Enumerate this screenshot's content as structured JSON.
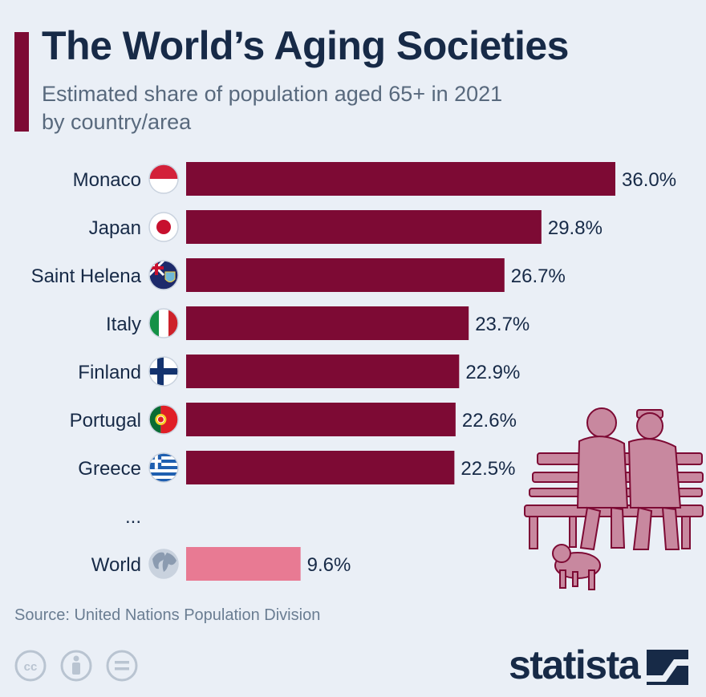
{
  "header": {
    "title": "The World’s Aging Societies",
    "subtitle_line1": "Estimated share of population aged 65+ in 2021",
    "subtitle_line2": "by country/area"
  },
  "chart_data": {
    "type": "bar",
    "orientation": "horizontal",
    "categories": [
      "Monaco",
      "Japan",
      "Saint Helena",
      "Italy",
      "Finland",
      "Portugal",
      "Greece",
      "...",
      "World"
    ],
    "values": [
      36.0,
      29.8,
      26.7,
      23.7,
      22.9,
      22.6,
      22.5,
      null,
      9.6
    ],
    "value_labels": [
      "36.0%",
      "29.8%",
      "26.7%",
      "23.7%",
      "22.9%",
      "22.6%",
      "22.5%",
      "",
      "9.6%"
    ],
    "flags": [
      "monaco-flag-icon",
      "japan-flag-icon",
      "saint-helena-flag-icon",
      "italy-flag-icon",
      "finland-flag-icon",
      "portugal-flag-icon",
      "greece-flag-icon",
      "",
      "globe-icon"
    ],
    "unit": "%",
    "xlim": [
      0,
      36
    ],
    "grid": false,
    "legend": "none",
    "bar_color": "#7d0a34",
    "highlight_color": "#e87a93"
  },
  "footer": {
    "source": "Source: United Nations Population Division",
    "brand": "statista",
    "license_icons": [
      "cc-icon",
      "by-icon",
      "nd-icon"
    ]
  },
  "colors": {
    "background": "#eaeff6",
    "title": "#172a47",
    "subtitle": "#58697d",
    "accent": "#7d0a34",
    "illustration": "#c8889f"
  }
}
